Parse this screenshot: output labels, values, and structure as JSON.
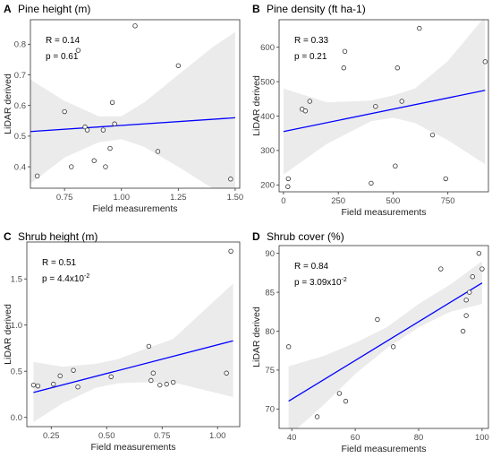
{
  "chart_data": [
    {
      "letter": "A",
      "type": "scatter",
      "title": "Pine height (m)",
      "xlabel": "Field measurements",
      "ylabel": "LiDAR derived",
      "xlim": [
        0.6,
        1.52
      ],
      "ylim": [
        0.33,
        0.88
      ],
      "xticks": [
        0.75,
        1.0,
        1.25,
        1.5
      ],
      "xtick_labels": [
        "0.75",
        "1.00",
        "1.25",
        "1.50"
      ],
      "yticks": [
        0.4,
        0.5,
        0.6,
        0.7,
        0.8
      ],
      "ytick_labels": [
        "0.4",
        "0.5",
        "0.6",
        "0.7",
        "0.8"
      ],
      "annotation": {
        "r_text": "R = 0.14",
        "p_text": "p = 0.61",
        "p_exp": ""
      },
      "points": [
        [
          0.63,
          0.37
        ],
        [
          0.75,
          0.58
        ],
        [
          0.78,
          0.4
        ],
        [
          0.81,
          0.78
        ],
        [
          0.84,
          0.53
        ],
        [
          0.85,
          0.52
        ],
        [
          0.88,
          0.42
        ],
        [
          0.92,
          0.52
        ],
        [
          0.93,
          0.4
        ],
        [
          0.95,
          0.46
        ],
        [
          0.96,
          0.61
        ],
        [
          0.97,
          0.54
        ],
        [
          1.06,
          0.86
        ],
        [
          1.16,
          0.45
        ],
        [
          1.25,
          0.73
        ],
        [
          1.48,
          0.36
        ]
      ],
      "fit": {
        "x": [
          0.6,
          1.5
        ],
        "y": [
          0.515,
          0.56
        ]
      },
      "band": {
        "x": [
          0.6,
          0.75,
          0.9,
          1.0,
          1.1,
          1.25,
          1.4,
          1.5
        ],
        "lower": [
          0.345,
          0.43,
          0.48,
          0.49,
          0.465,
          0.4,
          0.33,
          0.33
        ],
        "upper": [
          0.685,
          0.615,
          0.565,
          0.565,
          0.61,
          0.7,
          0.79,
          0.84
        ]
      }
    },
    {
      "letter": "B",
      "type": "scatter",
      "title": "Pine density (ft ha-1)",
      "xlabel": "Field measurements",
      "ylabel": "LiDAR derived",
      "xlim": [
        -20,
        935
      ],
      "ylim": [
        180,
        680
      ],
      "xticks": [
        0,
        250,
        500,
        750
      ],
      "xtick_labels": [
        "0",
        "250",
        "500",
        "750"
      ],
      "yticks": [
        200,
        300,
        400,
        500,
        600
      ],
      "ytick_labels": [
        "200",
        "300",
        "400",
        "500",
        "600"
      ],
      "annotation": {
        "r_text": "R = 0.33",
        "p_text": "p = 0.21",
        "p_exp": ""
      },
      "points": [
        [
          20,
          195
        ],
        [
          22,
          218
        ],
        [
          85,
          420
        ],
        [
          100,
          415
        ],
        [
          120,
          443
        ],
        [
          275,
          540
        ],
        [
          280,
          588
        ],
        [
          400,
          205
        ],
        [
          420,
          428
        ],
        [
          510,
          255
        ],
        [
          520,
          540
        ],
        [
          540,
          443
        ],
        [
          620,
          655
        ],
        [
          680,
          345
        ],
        [
          740,
          218
        ],
        [
          920,
          558
        ]
      ],
      "fit": {
        "x": [
          0,
          920
        ],
        "y": [
          355,
          475
        ]
      },
      "band": {
        "x": [
          0,
          200,
          400,
          500,
          600,
          750,
          920
        ],
        "lower": [
          230,
          320,
          385,
          395,
          380,
          330,
          260
        ],
        "upper": [
          480,
          440,
          445,
          460,
          480,
          560,
          690
        ]
      }
    },
    {
      "letter": "C",
      "type": "scatter",
      "title": "Shrub height (m)",
      "xlabel": "Field measurements",
      "ylabel": "LiDAR derived",
      "xlim": [
        0.14,
        1.1
      ],
      "ylim": [
        -0.1,
        1.9
      ],
      "xticks": [
        0.25,
        0.5,
        0.75,
        1.0
      ],
      "xtick_labels": [
        "0.25",
        "0.50",
        "0.75",
        "1.00"
      ],
      "yticks": [
        0.0,
        0.5,
        1.0,
        1.5
      ],
      "ytick_labels": [
        "0.0",
        "0.5",
        "1.0",
        "1.5"
      ],
      "annotation": {
        "r_text": "R = 0.51",
        "p_text": "p = 4.4x10",
        "p_exp": "-2"
      },
      "points": [
        [
          0.17,
          0.35
        ],
        [
          0.19,
          0.34
        ],
        [
          0.26,
          0.36
        ],
        [
          0.29,
          0.45
        ],
        [
          0.35,
          0.51
        ],
        [
          0.37,
          0.33
        ],
        [
          0.52,
          0.44
        ],
        [
          0.69,
          0.77
        ],
        [
          0.7,
          0.4
        ],
        [
          0.71,
          0.48
        ],
        [
          0.74,
          0.35
        ],
        [
          0.77,
          0.36
        ],
        [
          0.8,
          0.38
        ],
        [
          1.04,
          0.48
        ],
        [
          1.06,
          1.8
        ]
      ],
      "fit": {
        "x": [
          0.17,
          1.07
        ],
        "y": [
          0.27,
          0.83
        ]
      },
      "band": {
        "x": [
          0.17,
          0.3,
          0.45,
          0.55,
          0.65,
          0.8,
          1.07
        ],
        "lower": [
          -0.05,
          0.15,
          0.32,
          0.37,
          0.38,
          0.38,
          0.22
        ],
        "upper": [
          0.6,
          0.55,
          0.58,
          0.63,
          0.72,
          0.85,
          1.45
        ]
      }
    },
    {
      "letter": "D",
      "type": "scatter",
      "title": "Shrub cover (%)",
      "xlabel": "Field measurements",
      "ylabel": "LiDAR derived",
      "xlim": [
        36,
        102
      ],
      "ylim": [
        67.5,
        91
      ],
      "xticks": [
        40,
        60,
        80,
        100
      ],
      "xtick_labels": [
        "40",
        "60",
        "80",
        "100"
      ],
      "yticks": [
        70,
        75,
        80,
        85,
        90
      ],
      "ytick_labels": [
        "70",
        "75",
        "80",
        "85",
        "90"
      ],
      "annotation": {
        "r_text": "R = 0.84",
        "p_text": "p = 3.09x10",
        "p_exp": "-2"
      },
      "points": [
        [
          39,
          78
        ],
        [
          48,
          69
        ],
        [
          55,
          72
        ],
        [
          57,
          71
        ],
        [
          67,
          81.5
        ],
        [
          72,
          78
        ],
        [
          87,
          88
        ],
        [
          94,
          80
        ],
        [
          95,
          82
        ],
        [
          95,
          84
        ],
        [
          96,
          85
        ],
        [
          97,
          87
        ],
        [
          99,
          90
        ],
        [
          100,
          88
        ]
      ],
      "fit": {
        "x": [
          39,
          100
        ],
        "y": [
          71,
          86.2
        ]
      },
      "band": {
        "x": [
          39,
          50,
          60,
          70,
          80,
          90,
          100
        ],
        "lower": [
          66.5,
          70.5,
          74.5,
          77.8,
          80.5,
          82.5,
          83.5
        ],
        "upper": [
          75.5,
          76.8,
          78.5,
          80.5,
          83.5,
          86.0,
          89.0
        ]
      }
    }
  ]
}
